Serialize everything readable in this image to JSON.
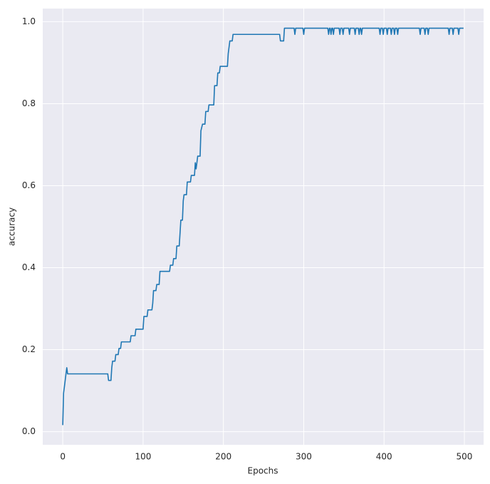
{
  "chart_data": {
    "type": "line",
    "xlabel": "Epochs",
    "ylabel": "accuracy",
    "color": "#1f77b4",
    "grid": true,
    "xlim": [
      -24.95,
      523.95
    ],
    "xticks": [
      0,
      100,
      200,
      300,
      400,
      500
    ],
    "ylim": [
      -0.032,
      1.032
    ],
    "yticks": [
      {
        "value": 0,
        "label": "0.0"
      },
      0.2,
      0.4,
      0.6,
      0.8,
      {
        "value": 1,
        "label": "1.0"
      }
    ],
    "x": [
      0,
      1,
      2,
      3,
      4,
      5,
      6,
      56,
      57,
      60,
      61,
      62,
      65,
      66,
      69,
      70,
      72,
      73,
      84,
      85,
      90,
      91,
      100,
      101,
      105,
      106,
      111,
      112,
      113,
      116,
      117,
      120,
      121,
      133,
      134,
      137,
      138,
      141,
      142,
      145,
      146,
      147,
      149,
      150,
      151,
      154,
      155,
      159,
      160,
      164,
      165,
      166,
      167,
      168,
      171,
      172,
      174,
      177,
      178,
      181,
      182,
      188,
      189,
      192,
      193,
      195,
      196,
      205,
      206,
      208,
      211,
      212,
      270,
      271,
      275,
      276,
      288,
      289,
      290,
      299,
      300,
      301,
      330,
      331,
      332,
      333,
      334,
      335,
      336,
      337,
      338,
      344,
      345,
      346,
      348,
      349,
      350,
      356,
      357,
      358,
      363,
      364,
      365,
      368,
      369,
      370,
      371,
      372,
      373,
      394,
      395,
      396,
      398,
      399,
      400,
      403,
      404,
      405,
      408,
      409,
      410,
      412,
      413,
      414,
      416,
      417,
      418,
      444,
      445,
      446,
      450,
      451,
      452,
      454,
      455,
      456,
      480,
      481,
      482,
      485,
      486,
      487,
      492,
      493,
      494,
      499
    ],
    "values": [
      0.016,
      0.094,
      0.109,
      0.125,
      0.141,
      0.156,
      0.141,
      0.141,
      0.125,
      0.125,
      0.156,
      0.172,
      0.172,
      0.188,
      0.188,
      0.203,
      0.203,
      0.219,
      0.219,
      0.234,
      0.234,
      0.25,
      0.25,
      0.281,
      0.281,
      0.297,
      0.297,
      0.313,
      0.344,
      0.344,
      0.359,
      0.359,
      0.391,
      0.391,
      0.406,
      0.406,
      0.422,
      0.422,
      0.453,
      0.453,
      0.484,
      0.516,
      0.516,
      0.563,
      0.578,
      0.578,
      0.609,
      0.609,
      0.625,
      0.625,
      0.656,
      0.641,
      0.656,
      0.672,
      0.672,
      0.734,
      0.75,
      0.75,
      0.781,
      0.781,
      0.797,
      0.797,
      0.844,
      0.844,
      0.875,
      0.875,
      0.891,
      0.891,
      0.922,
      0.953,
      0.953,
      0.969,
      0.969,
      0.953,
      0.953,
      0.984,
      0.984,
      0.969,
      0.984,
      0.984,
      0.969,
      0.984,
      0.984,
      0.969,
      0.984,
      0.984,
      0.969,
      0.984,
      0.984,
      0.969,
      0.984,
      0.984,
      0.969,
      0.984,
      0.984,
      0.969,
      0.984,
      0.984,
      0.969,
      0.984,
      0.984,
      0.969,
      0.984,
      0.984,
      0.969,
      0.984,
      0.984,
      0.969,
      0.984,
      0.984,
      0.969,
      0.984,
      0.984,
      0.969,
      0.984,
      0.984,
      0.969,
      0.984,
      0.984,
      0.969,
      0.984,
      0.984,
      0.969,
      0.984,
      0.984,
      0.969,
      0.984,
      0.984,
      0.969,
      0.984,
      0.984,
      0.969,
      0.984,
      0.984,
      0.969,
      0.984,
      0.984,
      0.969,
      0.984,
      0.984,
      0.969,
      0.984,
      0.984,
      0.969,
      0.984,
      0.984
    ]
  }
}
